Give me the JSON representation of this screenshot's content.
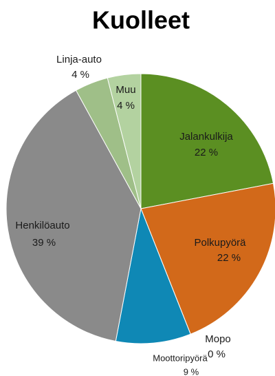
{
  "chart_data": {
    "type": "pie",
    "title": "Kuolleet",
    "categories": [
      "Jalankulkija",
      "Polkupyörä",
      "Mopo",
      "Moottoripyörä",
      "Henkilöauto",
      "Linja-auto",
      "Muu"
    ],
    "values": [
      22,
      22,
      0,
      9,
      39,
      4,
      4
    ],
    "value_labels": [
      "22 %",
      "22 %",
      "0 %",
      "9 %",
      "39 %",
      "4 %",
      "4 %"
    ],
    "colors": [
      "#5b8f22",
      "#d2691a",
      "#c0504d",
      "#0f88b5",
      "#8a8a8a",
      "#9fbf88",
      "#b3d2a0"
    ]
  }
}
